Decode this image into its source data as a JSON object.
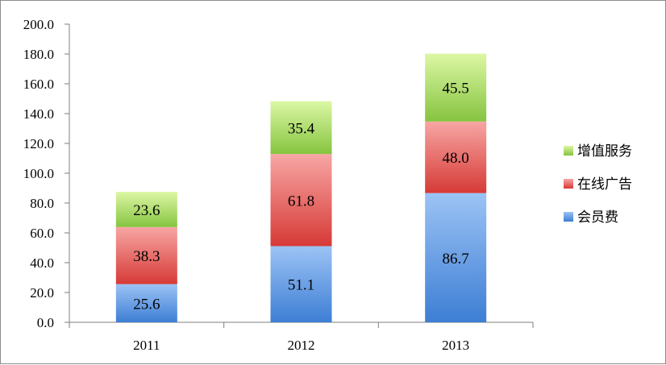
{
  "chart_data": {
    "type": "bar",
    "stacked": true,
    "categories": [
      "2011",
      "2012",
      "2013"
    ],
    "series": [
      {
        "name": "会员费",
        "values": [
          25.6,
          51.1,
          86.7
        ],
        "color_top": "#9cc3f5",
        "color_bottom": "#3d7ed4"
      },
      {
        "name": "在线广告",
        "values": [
          38.3,
          61.8,
          48.0
        ],
        "color_top": "#f7a6a4",
        "color_bottom": "#d63a36"
      },
      {
        "name": "增值服务",
        "values": [
          23.6,
          35.4,
          45.5
        ],
        "color_top": "#dcf7a4",
        "color_bottom": "#86c440"
      }
    ],
    "ylim": [
      0,
      200
    ],
    "y_ticks": [
      "0.0",
      "20.0",
      "40.0",
      "60.0",
      "80.0",
      "100.0",
      "120.0",
      "140.0",
      "160.0",
      "180.0",
      "200.0"
    ],
    "grid": false,
    "legend": "right",
    "title": "",
    "xlabel": "",
    "ylabel": ""
  }
}
